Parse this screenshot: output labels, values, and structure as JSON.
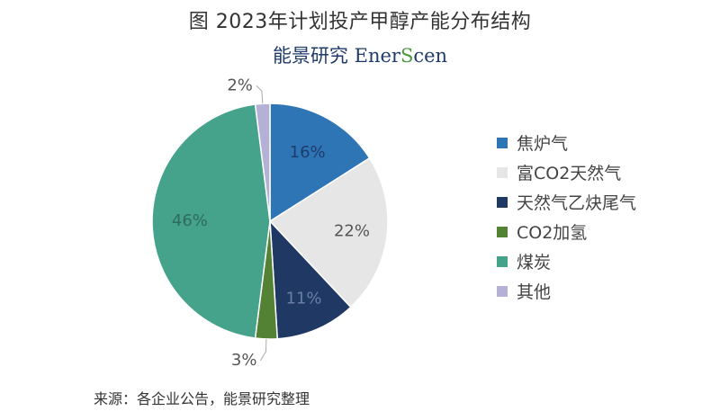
{
  "title": "图  2023年计划投产甲醇产能分布结构",
  "brand": {
    "cn": "能景研究",
    "en_part1": "Ener",
    "en_accent": "S",
    "en_part2": "cen"
  },
  "source": "来源：各企业公告，能景研究整理",
  "chart_data": {
    "type": "pie",
    "title": "图  2023年计划投产甲醇产能分布结构",
    "legend_position": "right",
    "slices": [
      {
        "label": "焦炉气",
        "value": 16,
        "display": "16%",
        "color": "#2e75b6"
      },
      {
        "label": "富CO2天然气",
        "value": 22,
        "display": "22%",
        "color": "#e6e6e6"
      },
      {
        "label": "天然气乙炔尾气",
        "value": 11,
        "display": "11%",
        "color": "#1f3864"
      },
      {
        "label": "CO2加氢",
        "value": 3,
        "display": "3%",
        "color": "#548235"
      },
      {
        "label": "煤炭",
        "value": 46,
        "display": "46%",
        "color": "#45a38c"
      },
      {
        "label": "其他",
        "value": 2,
        "display": "2%",
        "color": "#b4b0d6"
      }
    ]
  }
}
